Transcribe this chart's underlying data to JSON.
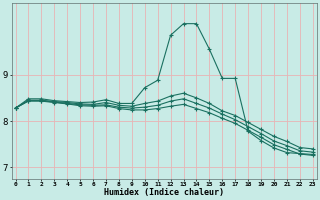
{
  "xlabel": "Humidex (Indice chaleur)",
  "background_color": "#c8ebe6",
  "grid_color": "#e8b4b4",
  "line_color": "#1a7060",
  "x_ticks": [
    0,
    1,
    2,
    3,
    4,
    5,
    6,
    7,
    8,
    9,
    10,
    11,
    12,
    13,
    14,
    15,
    16,
    17,
    18,
    19,
    20,
    21,
    22,
    23
  ],
  "y_ticks": [
    7,
    8,
    9
  ],
  "xlim": [
    -0.3,
    23.3
  ],
  "ylim": [
    6.75,
    10.55
  ],
  "series": [
    {
      "x": [
        0,
        1,
        2,
        3,
        4,
        5,
        6,
        7,
        8,
        9,
        10,
        11,
        12,
        13,
        14,
        15,
        16,
        17,
        18,
        19,
        20,
        21,
        22,
        23
      ],
      "y": [
        8.28,
        8.48,
        8.48,
        8.44,
        8.42,
        8.4,
        8.41,
        8.46,
        8.38,
        8.38,
        8.72,
        8.88,
        9.85,
        10.1,
        10.1,
        9.55,
        8.92,
        8.92,
        7.78,
        7.58,
        7.42,
        7.32,
        7.3,
        7.28
      ]
    },
    {
      "x": [
        0,
        1,
        2,
        3,
        4,
        5,
        6,
        7,
        8,
        9,
        10,
        11,
        12,
        13,
        14,
        15,
        16,
        17,
        18,
        19,
        20,
        21,
        22,
        23
      ],
      "y": [
        8.28,
        8.45,
        8.45,
        8.42,
        8.4,
        8.37,
        8.36,
        8.4,
        8.34,
        8.32,
        8.38,
        8.43,
        8.54,
        8.6,
        8.5,
        8.38,
        8.22,
        8.12,
        7.97,
        7.82,
        7.67,
        7.56,
        7.43,
        7.4
      ]
    },
    {
      "x": [
        0,
        1,
        2,
        3,
        4,
        5,
        6,
        7,
        8,
        9,
        10,
        11,
        12,
        13,
        14,
        15,
        16,
        17,
        18,
        19,
        20,
        21,
        22,
        23
      ],
      "y": [
        8.28,
        8.44,
        8.44,
        8.41,
        8.38,
        8.35,
        8.34,
        8.35,
        8.3,
        8.28,
        8.3,
        8.34,
        8.43,
        8.48,
        8.38,
        8.28,
        8.15,
        8.03,
        7.88,
        7.73,
        7.57,
        7.47,
        7.36,
        7.33
      ]
    },
    {
      "x": [
        0,
        1,
        2,
        3,
        4,
        5,
        6,
        7,
        8,
        9,
        10,
        11,
        12,
        13,
        14,
        15,
        16,
        17,
        18,
        19,
        20,
        21,
        22,
        23
      ],
      "y": [
        8.28,
        8.43,
        8.43,
        8.4,
        8.37,
        8.33,
        8.32,
        8.33,
        8.27,
        8.24,
        8.24,
        8.27,
        8.32,
        8.36,
        8.27,
        8.18,
        8.06,
        7.95,
        7.8,
        7.65,
        7.49,
        7.39,
        7.29,
        7.26
      ]
    }
  ]
}
